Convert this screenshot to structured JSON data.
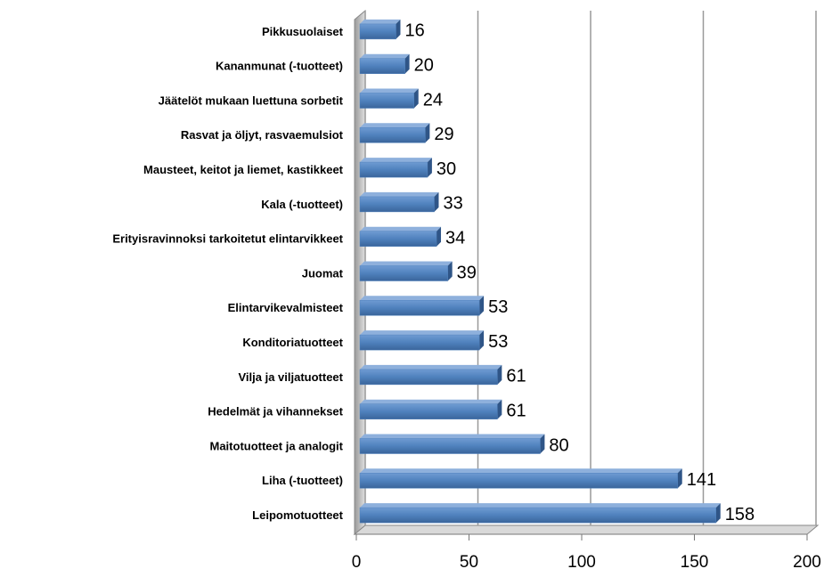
{
  "chart_data": {
    "type": "bar",
    "orientation": "horizontal",
    "categories": [
      "Pikkusuolaiset",
      "Kananmunat (-tuotteet)",
      "Jäätelöt mukaan luettuna sorbetit",
      "Rasvat ja öljyt, rasvaemulsiot",
      "Mausteet, keitot ja liemet, kastikkeet",
      "Kala (-tuotteet)",
      "Erityisravinnoksi tarkoitetut elintarvikkeet",
      "Juomat",
      "Elintarvikevalmisteet",
      "Konditoriatuotteet",
      "Vilja ja viljatuotteet",
      "Hedelmät ja vihannekset",
      "Maitotuotteet ja analogit",
      "Liha (-tuotteet)",
      "Leipomotuotteet"
    ],
    "values": [
      16,
      20,
      24,
      29,
      30,
      33,
      34,
      39,
      53,
      53,
      61,
      61,
      80,
      141,
      158
    ],
    "color": "#4f81bd",
    "xlim": [
      0,
      200
    ],
    "xticks": [
      0,
      50,
      100,
      150,
      200
    ],
    "grid": true
  }
}
